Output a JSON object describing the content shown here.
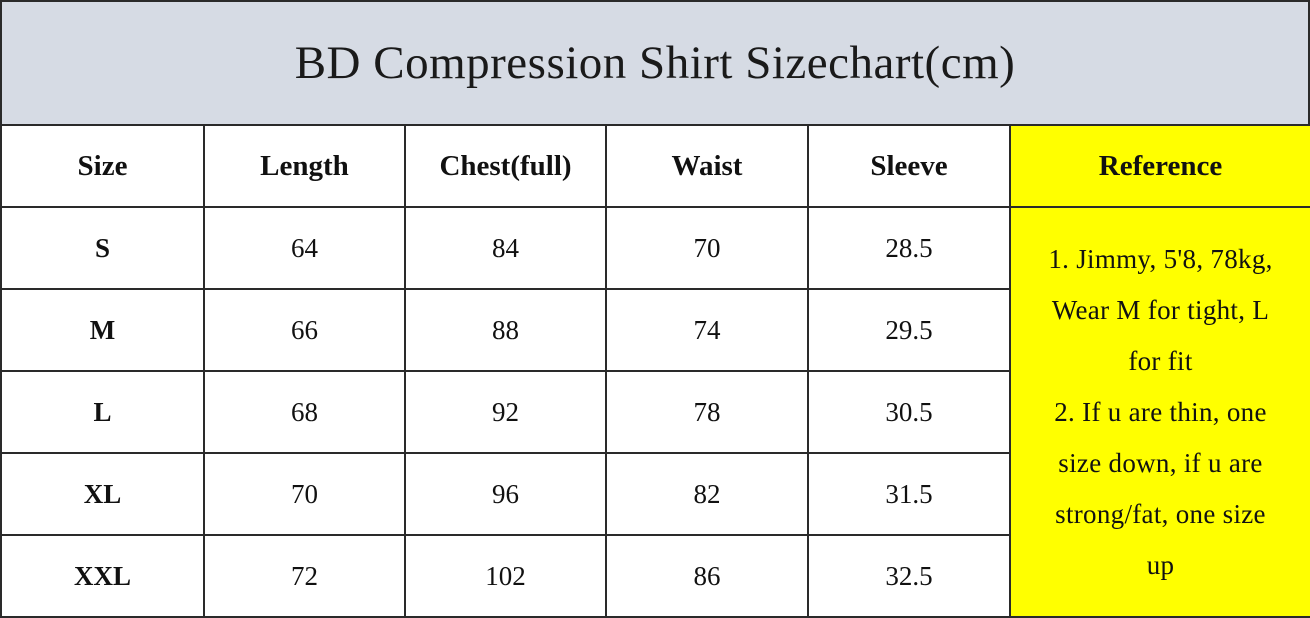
{
  "title": "BD Compression Shirt Sizechart(cm)",
  "headers": [
    "Size",
    "Length",
    "Chest(full)",
    "Waist",
    "Sleeve",
    "Reference"
  ],
  "rows": [
    [
      "S",
      "64",
      "84",
      "70",
      "28.5"
    ],
    [
      "M",
      "66",
      "88",
      "74",
      "29.5"
    ],
    [
      "L",
      "68",
      "92",
      "78",
      "30.5"
    ],
    [
      "XL",
      "70",
      "96",
      "82",
      "31.5"
    ],
    [
      "XXL",
      "72",
      "102",
      "86",
      "32.5"
    ]
  ],
  "reference": {
    "lines": [
      "1. Jimmy, 5'8, 78kg,",
      "Wear M for tight, L",
      "for fit",
      "2. If u are thin, one",
      "size down, if u are",
      "strong/fat, one size",
      "up"
    ]
  },
  "colors": {
    "title_background": "#d6dbe4",
    "reference_background": "#ffff00",
    "border": "#2a2a2a"
  }
}
